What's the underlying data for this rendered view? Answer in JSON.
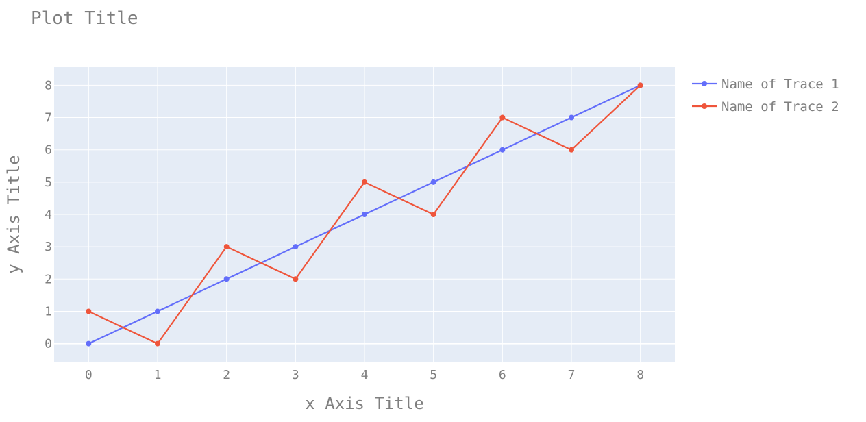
{
  "chart_data": {
    "type": "line",
    "title": "Plot Title",
    "xlabel": "x Axis Title",
    "ylabel": "y Axis Title",
    "x": [
      0,
      1,
      2,
      3,
      4,
      5,
      6,
      7,
      8
    ],
    "xlim": [
      -0.5,
      8.5
    ],
    "ylim": [
      -0.56,
      8.56
    ],
    "xticks": [
      0,
      1,
      2,
      3,
      4,
      5,
      6,
      7,
      8
    ],
    "yticks": [
      0,
      1,
      2,
      3,
      4,
      5,
      6,
      7,
      8
    ],
    "grid": true,
    "legend_position": "top-right outside",
    "plot_background": "#e5ecf6",
    "gridline_color": "#ffffff",
    "series": [
      {
        "name": "Name of Trace 1",
        "color": "#636efa",
        "values": [
          0,
          1,
          2,
          3,
          4,
          5,
          6,
          7,
          8
        ]
      },
      {
        "name": "Name of Trace 2",
        "color": "#ef553b",
        "values": [
          1,
          0,
          3,
          2,
          5,
          4,
          7,
          6,
          8
        ]
      }
    ]
  }
}
